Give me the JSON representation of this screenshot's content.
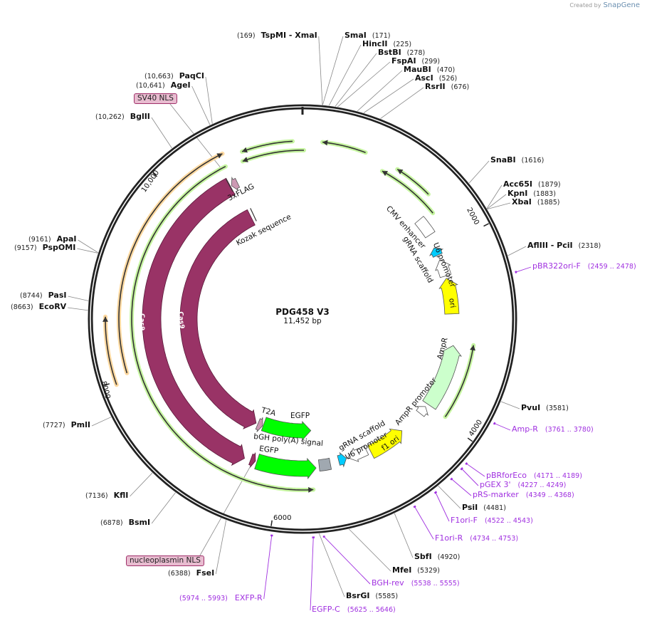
{
  "credit": {
    "prefix": "Created by",
    "brand": "SnapGene"
  },
  "plasmid": {
    "name": "PDG458 V3",
    "length_label": "11,452 bp",
    "length": 11452
  },
  "ticks": [
    "2000",
    "4000",
    "6000",
    "8000",
    "10,000"
  ],
  "enzymes": [
    {
      "name": "TspMI  - XmaI",
      "pos": "169"
    },
    {
      "name": "SmaI",
      "pos": "171"
    },
    {
      "name": "HincII",
      "pos": "225"
    },
    {
      "name": "BstBI",
      "pos": "278"
    },
    {
      "name": "FspAI",
      "pos": "299"
    },
    {
      "name": "MauBI",
      "pos": "470"
    },
    {
      "name": "AscI",
      "pos": "526"
    },
    {
      "name": "RsrII",
      "pos": "676"
    },
    {
      "name": "SnaBI",
      "pos": "1616"
    },
    {
      "name": "Acc65I",
      "pos": "1879"
    },
    {
      "name": "KpnI",
      "pos": "1883"
    },
    {
      "name": "XbaI",
      "pos": "1885"
    },
    {
      "name": "AflIII  - PciI",
      "pos": "2318"
    },
    {
      "name": "PvuI",
      "pos": "3581"
    },
    {
      "name": "PsiI",
      "pos": "4481"
    },
    {
      "name": "SbfI",
      "pos": "4920"
    },
    {
      "name": "MfeI",
      "pos": "5329"
    },
    {
      "name": "BsrGI",
      "pos": "5585"
    },
    {
      "name": "FseI",
      "pos": "6388"
    },
    {
      "name": "BsmI",
      "pos": "6878"
    },
    {
      "name": "KflI",
      "pos": "7136"
    },
    {
      "name": "PmlI",
      "pos": "7727"
    },
    {
      "name": "EcoRV",
      "pos": "8663"
    },
    {
      "name": "PasI",
      "pos": "8744"
    },
    {
      "name": "PspOMI",
      "pos": "9157"
    },
    {
      "name": "ApaI",
      "pos": "9161"
    },
    {
      "name": "BglII",
      "pos": "10,262"
    },
    {
      "name": "AgeI",
      "pos": "10,641"
    },
    {
      "name": "PaqCI",
      "pos": "10,663"
    }
  ],
  "primers": [
    {
      "name": "pBR322ori-F",
      "range": "2459 .. 2478"
    },
    {
      "name": "Amp-R",
      "range": "3761 .. 3780"
    },
    {
      "name": "pBRforEco",
      "range": "4171 .. 4189"
    },
    {
      "name": "pGEX 3'",
      "range": "4227 .. 4249"
    },
    {
      "name": "pRS-marker",
      "range": "4349 .. 4368"
    },
    {
      "name": "F1ori-F",
      "range": "4522 .. 4543"
    },
    {
      "name": "F1ori-R",
      "range": "4734 .. 4753"
    },
    {
      "name": "BGH-rev",
      "range": "5538 .. 5555"
    },
    {
      "name": "EGFP-C",
      "range": "5625 .. 5646"
    },
    {
      "name": "EXFP-R",
      "range": "5974 .. 5993"
    }
  ],
  "features": [
    {
      "name": "Cas9",
      "start": 6445,
      "end": 10545,
      "dir": -1,
      "color": "#993366"
    },
    {
      "name": "Cas9",
      "start": 6490,
      "end": 10600,
      "dir": -1,
      "color": "#993366"
    },
    {
      "name": "3xFLAG",
      "start": 10560,
      "end": 10640,
      "dir": -1,
      "color": "#cc99b3"
    },
    {
      "name": "Kozak sequence",
      "start": 10650,
      "end": 10660,
      "dir": 0,
      "color": "#333333"
    },
    {
      "name": "T2A",
      "start": 6380,
      "end": 6460,
      "dir": -1,
      "color": "#cc99b3"
    },
    {
      "name": "EGFP",
      "start": 5590,
      "end": 6370,
      "dir": -1,
      "color": "#00ff00"
    },
    {
      "name": "bGH poly(A) signal",
      "start": 5380,
      "end": 5520,
      "dir": 0,
      "color": "#a0a8b0"
    },
    {
      "name": "EGFP",
      "start": 5560,
      "end": 6290,
      "dir": -1,
      "color": "#00ff00"
    },
    {
      "name": "nucleoplasmin NLS",
      "start": 6310,
      "end": 6370,
      "dir": -1,
      "color": "#993366"
    },
    {
      "name": "gRNA scaffold",
      "start": 5170,
      "end": 5270,
      "dir": -1,
      "color": "#00ccff"
    },
    {
      "name": "U6 promoter",
      "start": 4900,
      "end": 5150,
      "dir": 1,
      "color": "#ffffff"
    },
    {
      "name": "f1 ori",
      "start": 4400,
      "end": 4860,
      "dir": -1,
      "color": "#ffff00"
    },
    {
      "name": "AmpR promoter",
      "start": 3990,
      "end": 4095,
      "dir": -1,
      "color": "#ffffff"
    },
    {
      "name": "AmpR",
      "start": 3180,
      "end": 3950,
      "dir": -1,
      "color": "#ccffcc"
    },
    {
      "name": "ori",
      "start": 2360,
      "end": 2800,
      "dir": -1,
      "color": "#ffff00"
    },
    {
      "name": "U6 promoter",
      "start": 2120,
      "end": 2330,
      "dir": -1,
      "color": "#ffffff"
    },
    {
      "name": "gRNA scaffold",
      "start": 1960,
      "end": 2060,
      "dir": -1,
      "color": "#00ccff"
    },
    {
      "name": "CMV enhancer",
      "start": 1580,
      "end": 1800,
      "dir": 0,
      "color": "#ffffff"
    },
    {
      "name": "SV40 NLS",
      "start": 10540,
      "end": 10560,
      "dir": 0,
      "color": "#993366"
    }
  ],
  "orfs": [
    {
      "start": 8045,
      "end": 10630,
      "dir": 1,
      "color": "#f5a623"
    },
    {
      "start": 7970,
      "end": 8610,
      "dir": 1,
      "color": "#f5a623"
    },
    {
      "start": 5610,
      "end": 10600,
      "dir": -1,
      "color": "#7ed321"
    },
    {
      "start": 10820,
      "end": 11350,
      "dir": -1,
      "color": "#7ed321"
    },
    {
      "start": 10790,
      "end": 11467,
      "dir": -1,
      "color": "#7ed321"
    },
    {
      "start": 205,
      "end": 660,
      "dir": -1,
      "color": "#7ed321"
    },
    {
      "start": 900,
      "end": 1620,
      "dir": -1,
      "color": "#7ed321"
    },
    {
      "start": 1030,
      "end": 1440,
      "dir": -1,
      "color": "#7ed321"
    },
    {
      "start": 3140,
      "end": 3957,
      "dir": -1,
      "color": "#7ed321"
    }
  ],
  "colors": {
    "ring": "#222222",
    "primer": "#a030e0",
    "enzyme_line": "#888888"
  }
}
